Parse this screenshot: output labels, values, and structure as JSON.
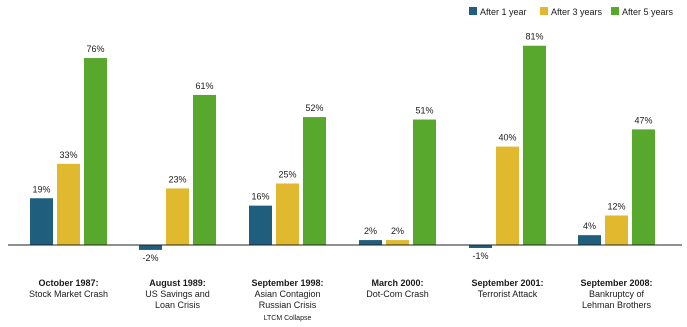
{
  "chart_data": {
    "type": "bar",
    "legend_position": "top-right",
    "grid": false,
    "ylim": [
      -3,
      85
    ],
    "series": [
      {
        "name": "After 1 year",
        "color": "#1f5e7c",
        "values": [
          19,
          -2,
          16,
          2,
          -1,
          4
        ]
      },
      {
        "name": "After 3 years",
        "color": "#e0b92e",
        "values": [
          33,
          23,
          25,
          2,
          40,
          12
        ]
      },
      {
        "name": "After 5 years",
        "color": "#58a82e",
        "values": [
          76,
          61,
          52,
          51,
          81,
          47
        ]
      }
    ],
    "value_labels": [
      [
        "19%",
        "33%",
        "76%"
      ],
      [
        "-2%",
        "23%",
        "61%"
      ],
      [
        "16%",
        "25%",
        "52%"
      ],
      [
        "2%",
        "2%",
        "51%"
      ],
      [
        "-1%",
        "40%",
        "81%"
      ],
      [
        "4%",
        "12%",
        "47%"
      ]
    ],
    "categories": [
      {
        "title": "October 1987:",
        "lines": [
          "Stock Market Crash"
        ]
      },
      {
        "title": "August 1989:",
        "lines": [
          "US Savings and",
          "Loan Crisis"
        ]
      },
      {
        "title": "September 1998:",
        "lines": [
          "Asian Contagion",
          "Russian Crisis"
        ],
        "note": "LTCM Collapse"
      },
      {
        "title": "March 2000:",
        "lines": [
          "Dot-Com Crash"
        ]
      },
      {
        "title": "September 2001:",
        "lines": [
          "Terrorist Attack"
        ]
      },
      {
        "title": "September 2008:",
        "lines": [
          "Bankruptcy of",
          "Lehman Brothers"
        ]
      }
    ]
  }
}
